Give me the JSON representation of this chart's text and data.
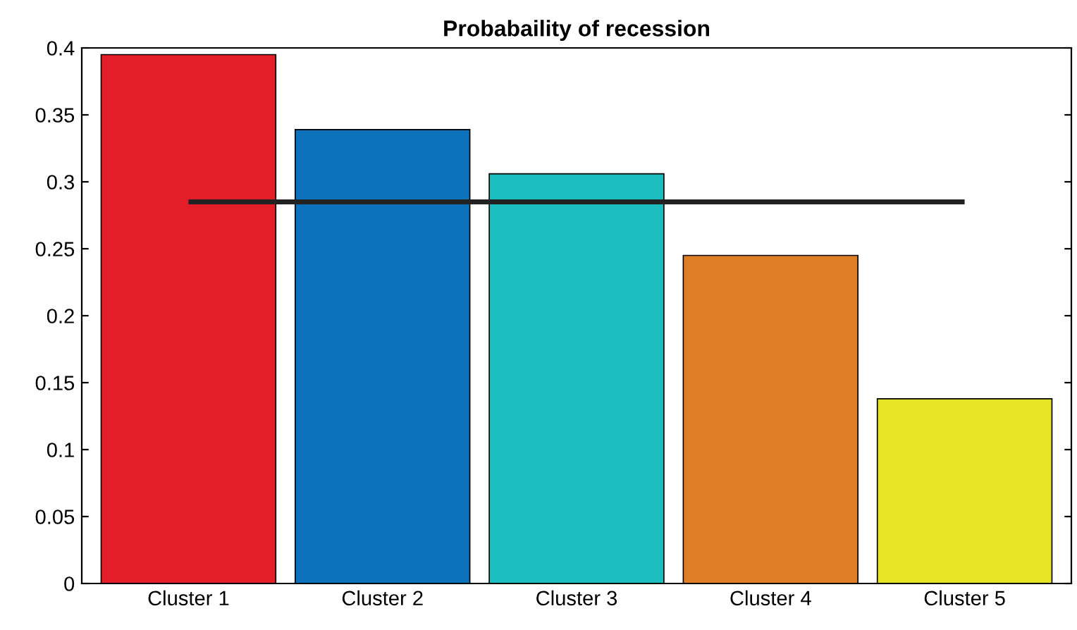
{
  "chart_data": {
    "type": "bar",
    "title": "Probabaility of recession",
    "categories": [
      "Cluster 1",
      "Cluster 2",
      "Cluster 3",
      "Cluster 4",
      "Cluster 5"
    ],
    "values": [
      0.395,
      0.339,
      0.306,
      0.245,
      0.138
    ],
    "colors": [
      "#e31e28",
      "#0c72bc",
      "#1bbdbe",
      "#de7e26",
      "#e5e526"
    ],
    "ylim": [
      0,
      0.4
    ],
    "yticks": [
      0,
      0.05,
      0.1,
      0.15,
      0.2,
      0.25,
      0.3,
      0.35,
      0.4
    ],
    "ref_lines": [
      {
        "axis": "y",
        "value": 0.285,
        "color": "#222222",
        "line_style": "solid"
      }
    ],
    "grid": false,
    "legend": false
  }
}
